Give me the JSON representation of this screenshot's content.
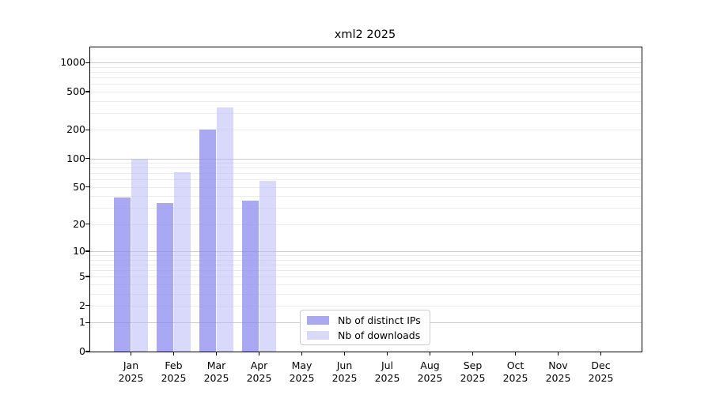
{
  "title": "xml2 2025",
  "chart_data": {
    "type": "bar",
    "title": "xml2 2025",
    "categories": [
      "Jan",
      "Feb",
      "Mar",
      "Apr",
      "May",
      "Jun",
      "Jul",
      "Aug",
      "Sep",
      "Oct",
      "Nov",
      "Dec"
    ],
    "category_year": "2025",
    "series": [
      {
        "name": "Nb of distinct IPs",
        "color_fill": "rgba(134,134,238,0.72)",
        "color_legend": "#a9a9f2",
        "values": [
          39,
          34,
          200,
          36,
          0,
          0,
          0,
          0,
          0,
          0,
          0,
          0
        ]
      },
      {
        "name": "Nb of downloads",
        "color_fill": "rgba(186,186,250,0.55)",
        "color_legend": "#d9d9f9",
        "values": [
          100,
          72,
          345,
          58,
          0,
          0,
          0,
          0,
          0,
          0,
          0,
          0
        ]
      }
    ],
    "y_ticks": [
      0,
      1,
      2,
      5,
      10,
      20,
      50,
      100,
      200,
      500,
      1000
    ],
    "y_scale": "log10(1+y)",
    "ylim": [
      0,
      1413
    ],
    "xlabel": "",
    "ylabel": "",
    "grid": true,
    "grid_major_values": [
      1,
      10,
      100,
      1000
    ],
    "grid_minor_multipliers": [
      2,
      3,
      4,
      5,
      6,
      7,
      8,
      9
    ],
    "legend_position": "lower-center-inside",
    "legend_entries": [
      "Nb of distinct IPs",
      "Nb of downloads"
    ],
    "colors": {
      "grid_major": "#cbcbcb",
      "grid_minor": "#ececec",
      "spine": "#000000",
      "background": "#ffffff"
    }
  }
}
